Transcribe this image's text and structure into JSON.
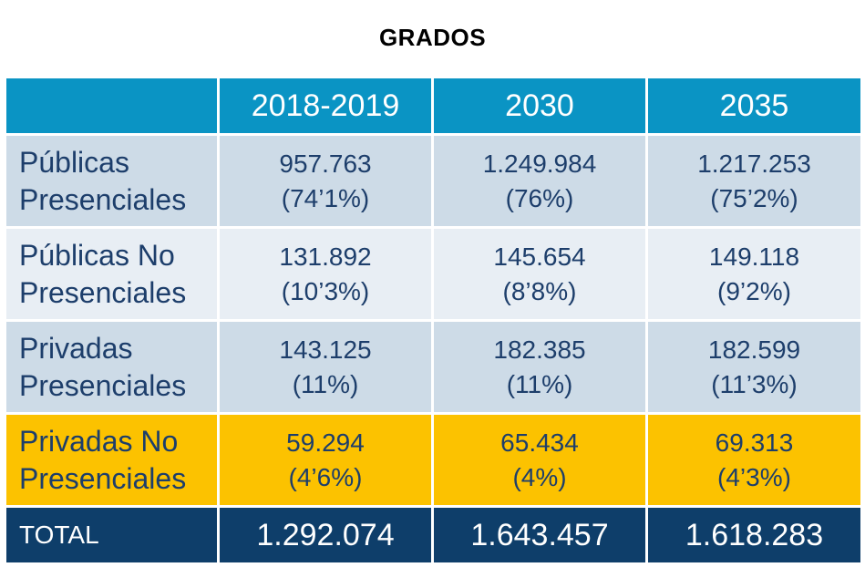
{
  "title": "GRADOS",
  "table": {
    "header": [
      "",
      "2018-2019",
      "2030",
      "2035"
    ],
    "rows": [
      {
        "label_line1": "Públicas",
        "label_line2": "Presenciales",
        "values": [
          {
            "number": "957.763",
            "percent": "(74’1%)"
          },
          {
            "number": "1.249.984",
            "percent": "(76%)"
          },
          {
            "number": "1.217.253",
            "percent": "(75’2%)"
          }
        ]
      },
      {
        "label_line1": "Públicas No",
        "label_line2": "Presenciales",
        "values": [
          {
            "number": "131.892",
            "percent": "(10’3%)"
          },
          {
            "number": "145.654",
            "percent": "(8’8%)"
          },
          {
            "number": "149.118",
            "percent": "(9’2%)"
          }
        ]
      },
      {
        "label_line1": "Privadas",
        "label_line2": "Presenciales",
        "values": [
          {
            "number": "143.125",
            "percent": "(11%)"
          },
          {
            "number": "182.385",
            "percent": "(11%)"
          },
          {
            "number": "182.599",
            "percent": "(11’3%)"
          }
        ]
      },
      {
        "label_line1": "Privadas No",
        "label_line2": "Presenciales",
        "values": [
          {
            "number": "59.294",
            "percent": "(4’6%)"
          },
          {
            "number": "65.434",
            "percent": "(4%)"
          },
          {
            "number": "69.313",
            "percent": "(4’3%)"
          }
        ]
      }
    ],
    "total": {
      "label": "TOTAL",
      "values": [
        "1.292.074",
        "1.643.457",
        "1.618.283"
      ]
    }
  },
  "colors": {
    "header_bg": "#0a94c4",
    "row_dark_bg": "#cddbe7",
    "row_light_bg": "#e8eef4",
    "highlight_bg": "#fcc200",
    "total_bg": "#0e3e6a",
    "body_text": "#1d3e6b"
  }
}
